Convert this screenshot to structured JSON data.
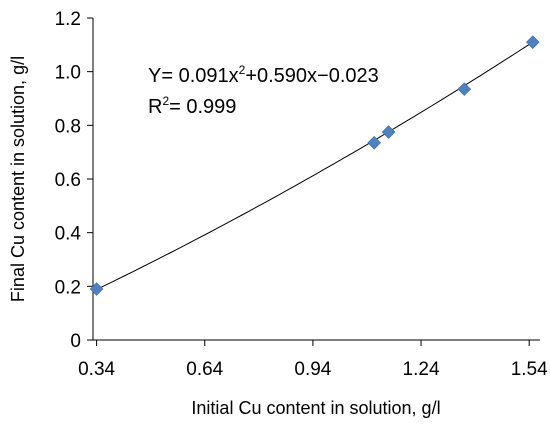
{
  "chart_data": {
    "type": "scatter",
    "title": "",
    "xlabel": "Initial Cu content in solution, g/l",
    "ylabel": "Final Cu content in solution, g/l",
    "xlim": [
      0.33,
      1.57
    ],
    "ylim": [
      0,
      1.2
    ],
    "xticks": [
      0.34,
      0.64,
      0.94,
      1.24,
      1.54
    ],
    "xtick_labels": [
      "0.34",
      "0.64",
      "0.94",
      "1.24",
      "1.54"
    ],
    "yticks": [
      0,
      0.2,
      0.4,
      0.6,
      0.8,
      1.0,
      1.2
    ],
    "ytick_labels": [
      "0",
      "0.2",
      "0.4",
      "0.6",
      "0.8",
      "1.0",
      "1.2"
    ],
    "grid": false,
    "marker_color": "#4f81bd",
    "series": [
      {
        "x": [
          0.34,
          1.11,
          1.15,
          1.36,
          1.55
        ],
        "y": [
          0.19,
          0.735,
          0.775,
          0.935,
          1.11
        ]
      }
    ],
    "trendline": {
      "type": "polynomial",
      "coefficients": [
        0.091,
        0.59,
        -0.023
      ],
      "x_range": [
        0.34,
        1.55
      ]
    },
    "annotations": {
      "equation_prefix": "Y= 0.091x",
      "equation_sup": "2",
      "equation_suffix": "+0.590x−0.023",
      "r2_prefix": "R",
      "r2_sup": "2",
      "r2_suffix": "= 0.999"
    }
  }
}
